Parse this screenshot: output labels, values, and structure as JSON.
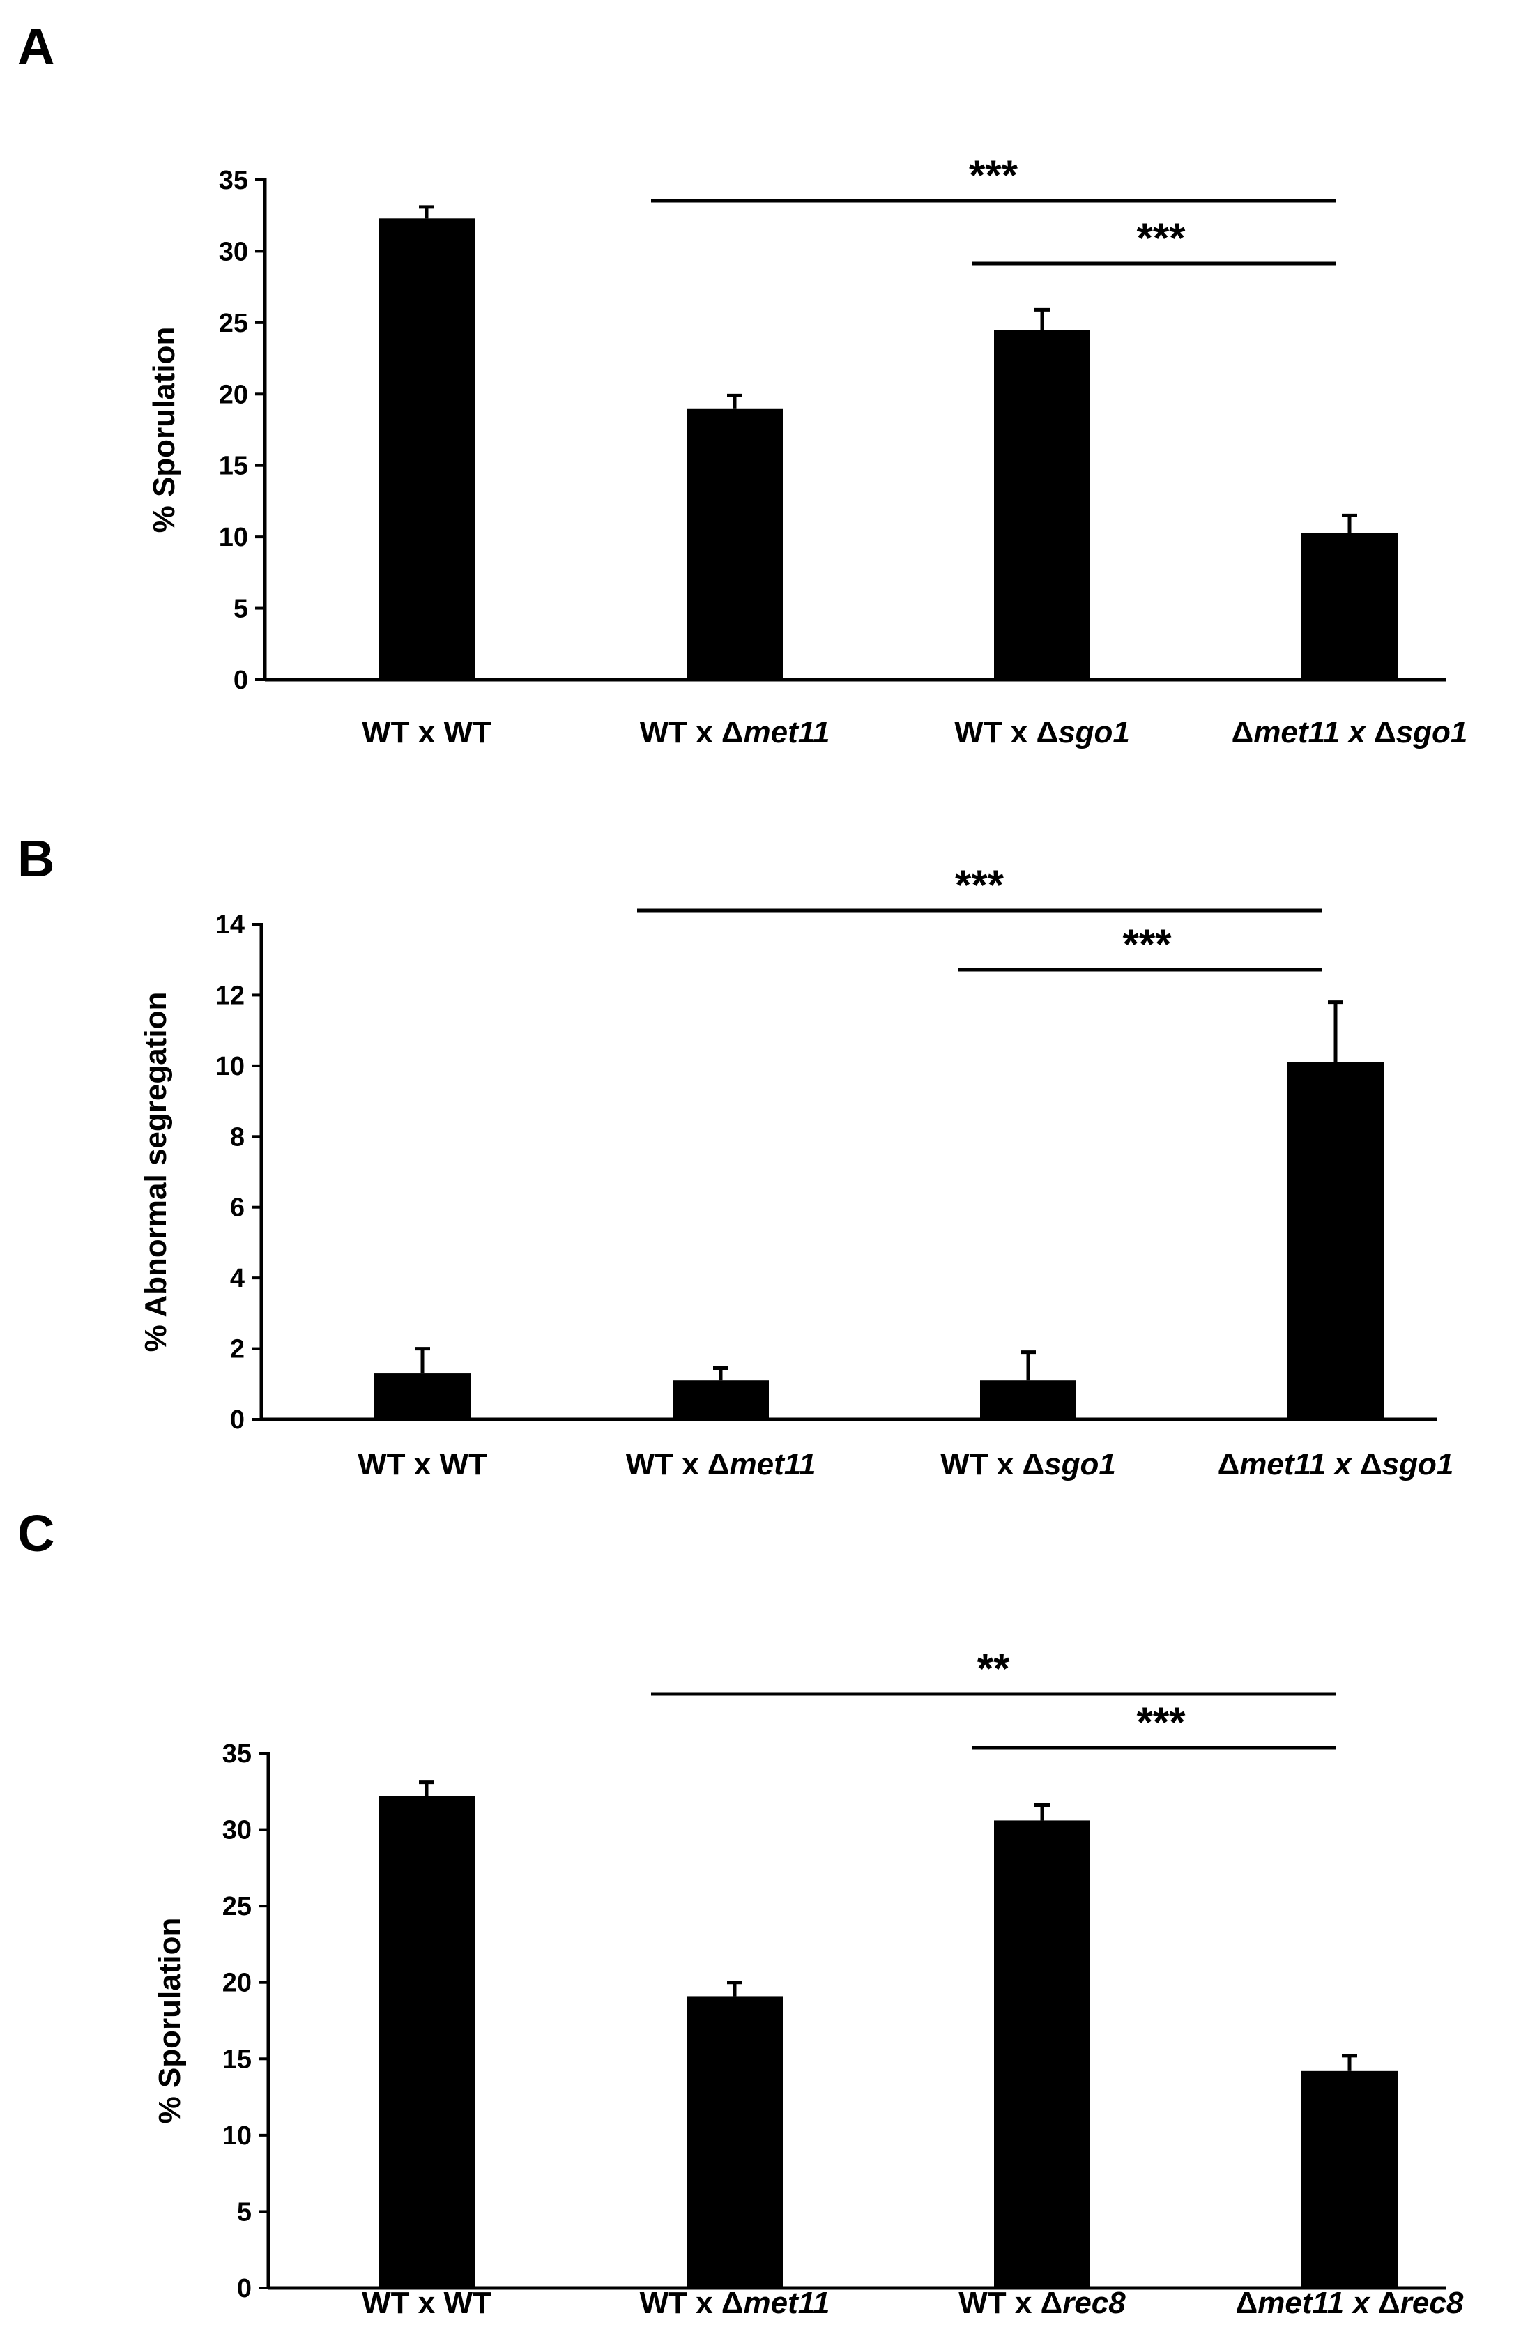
{
  "chart_data": [
    {
      "panel": "A",
      "type": "bar",
      "ylabel": "% Sporulation",
      "ylim": [
        0,
        35
      ],
      "yticks": [
        0,
        5,
        10,
        15,
        20,
        25,
        30,
        35
      ],
      "categories": [
        {
          "prefix": "WT x WT",
          "italic": "",
          "mid": "",
          "italic2": ""
        },
        {
          "prefix": "WT x Δ",
          "italic": "met11",
          "mid": "",
          "italic2": ""
        },
        {
          "prefix": "WT x Δ",
          "italic": "sgo1",
          "mid": "",
          "italic2": ""
        },
        {
          "prefix": "Δ",
          "italic": "met11 x ",
          "mid": "Δ",
          "italic2": "sgo1"
        }
      ],
      "values": [
        32.3,
        19.0,
        24.5,
        10.3
      ],
      "errors": [
        0.8,
        0.9,
        1.4,
        1.2
      ],
      "significance": [
        {
          "from": 1,
          "to": 3,
          "label": "***"
        },
        {
          "from": 2,
          "to": 3,
          "label": "***"
        }
      ]
    },
    {
      "panel": "B",
      "type": "bar",
      "ylabel": "% Abnormal segregation",
      "ylim": [
        0,
        14
      ],
      "yticks": [
        0,
        2,
        4,
        6,
        8,
        10,
        12,
        14
      ],
      "categories": [
        {
          "prefix": "WT x WT",
          "italic": "",
          "mid": "",
          "italic2": ""
        },
        {
          "prefix": "WT x Δ",
          "italic": "met11",
          "mid": "",
          "italic2": ""
        },
        {
          "prefix": "WT x Δ",
          "italic": "sgo1",
          "mid": "",
          "italic2": ""
        },
        {
          "prefix": "Δ",
          "italic": "met11 x ",
          "mid": "Δ",
          "italic2": "sgo1"
        }
      ],
      "values": [
        1.3,
        1.1,
        1.1,
        10.1
      ],
      "errors": [
        0.7,
        0.35,
        0.8,
        1.7
      ],
      "significance": [
        {
          "from": 1,
          "to": 3,
          "label": "***"
        },
        {
          "from": 2,
          "to": 3,
          "label": "***"
        }
      ]
    },
    {
      "panel": "C",
      "type": "bar",
      "ylabel": "% Sporulation",
      "ylim": [
        0,
        35
      ],
      "yticks": [
        0,
        5,
        10,
        15,
        20,
        25,
        30,
        35
      ],
      "categories": [
        {
          "prefix": "WT x WT",
          "italic": "",
          "mid": "",
          "italic2": ""
        },
        {
          "prefix": "WT x Δ",
          "italic": "met11",
          "mid": "",
          "italic2": ""
        },
        {
          "prefix": "WT x Δ",
          "italic": "rec8",
          "mid": "",
          "italic2": ""
        },
        {
          "prefix": "Δ",
          "italic": "met11 x ",
          "mid": "Δ",
          "italic2": "rec8"
        }
      ],
      "values": [
        32.2,
        19.1,
        30.6,
        14.2
      ],
      "errors": [
        0.9,
        0.9,
        1.0,
        1.0
      ],
      "significance": [
        {
          "from": 1,
          "to": 3,
          "label": "**"
        },
        {
          "from": 2,
          "to": 3,
          "label": "***"
        }
      ]
    }
  ],
  "style": {
    "bar_color": "#000000",
    "axis_color": "#000000"
  }
}
